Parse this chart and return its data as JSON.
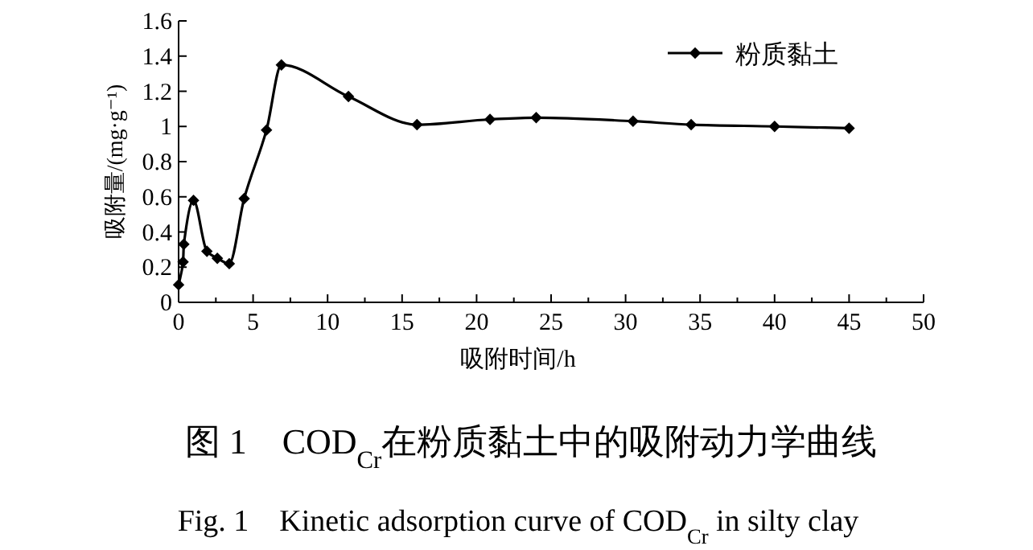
{
  "chart_data": {
    "type": "line",
    "title": "图 1　COD$_{Cr}$在粉质黏土中的吸附动力学曲线",
    "subtitle": "Fig. 1　Kinetic adsorption curve of COD$_{Cr}$ in silty clay",
    "xlabel": "吸附时间/h",
    "ylabel": "吸附量/(mg·g⁻¹)",
    "series": [
      {
        "name": "粉质黏土",
        "color": "#000000",
        "x": [
          0,
          0.3,
          0.35,
          1.0,
          1.9,
          2.6,
          3.4,
          4.4,
          5.9,
          6.9,
          11.4,
          16.0,
          20.9,
          24.0,
          30.5,
          34.4,
          40.0,
          45.0
        ],
        "values": [
          0.1,
          0.23,
          0.33,
          0.58,
          0.29,
          0.25,
          0.22,
          0.59,
          0.98,
          1.35,
          1.17,
          1.01,
          1.04,
          1.05,
          1.03,
          1.01,
          1.0,
          0.99
        ]
      }
    ],
    "xlim": [
      0,
      50
    ],
    "ylim": [
      0,
      1.6
    ],
    "xticks": [
      0,
      5,
      10,
      15,
      20,
      25,
      30,
      35,
      40,
      45,
      50
    ],
    "yticks": [
      0,
      0.2,
      0.4,
      0.6,
      0.8,
      1,
      1.2,
      1.4,
      1.6
    ],
    "marker": "diamond",
    "line_style": "solid",
    "legend": "top right",
    "grid": false
  }
}
